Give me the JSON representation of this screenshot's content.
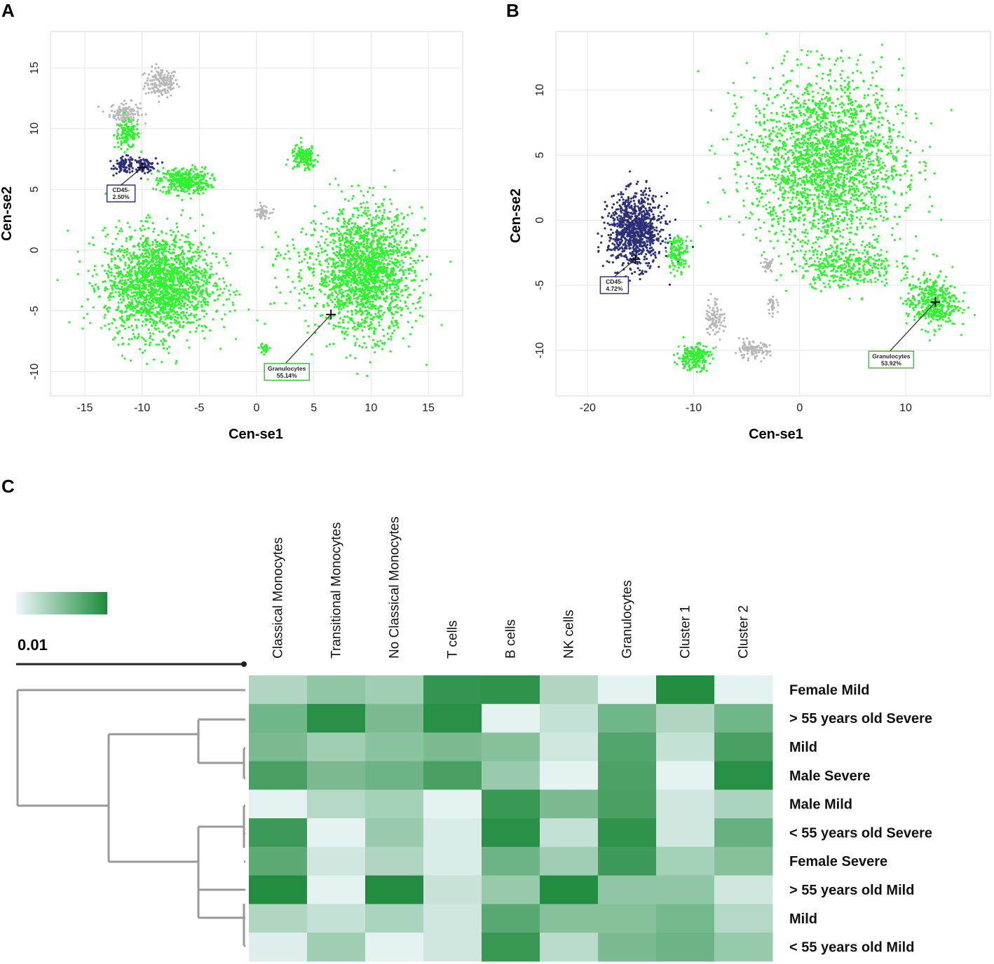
{
  "panels": {
    "A": "A",
    "B": "B",
    "C": "C"
  },
  "colors": {
    "green": "#2ef22e",
    "grey": "#b8b8b8",
    "navy": "#2b2f78",
    "heat_low": "#eef7fb",
    "heat_high": "#1e8a3c",
    "label_green": "#3fbf3f",
    "label_navy": "#333377"
  },
  "chart_data": [
    {
      "id": "A",
      "type": "scatter",
      "xlabel": "Cen-se1",
      "ylabel": "Cen-se2",
      "xlim": [
        -18,
        18
      ],
      "ylim": [
        -12,
        18
      ],
      "xticks": [
        -15,
        -10,
        -5,
        0,
        5,
        10,
        15
      ],
      "yticks": [
        -10,
        -5,
        0,
        5,
        10,
        15
      ],
      "clusters": [
        {
          "color": "grey",
          "center": [
            -8.3,
            13.8
          ],
          "spread": [
            1.3,
            1.1
          ],
          "count": 160
        },
        {
          "color": "grey",
          "center": [
            -11.5,
            11.3
          ],
          "spread": [
            1.2,
            0.8
          ],
          "count": 120
        },
        {
          "color": "green",
          "center": [
            -11.3,
            9.5
          ],
          "spread": [
            1.0,
            1.0
          ],
          "count": 130
        },
        {
          "color": "navy",
          "center": [
            -11.5,
            7.0
          ],
          "spread": [
            0.8,
            0.6
          ],
          "count": 90
        },
        {
          "color": "navy",
          "center": [
            -9.8,
            7.0
          ],
          "spread": [
            0.9,
            0.5
          ],
          "count": 80
        },
        {
          "color": "green",
          "center": [
            -6.3,
            5.7
          ],
          "spread": [
            2.0,
            1.0
          ],
          "count": 360
        },
        {
          "color": "green",
          "center": [
            -8.5,
            -2.8
          ],
          "spread": [
            4.3,
            3.8
          ],
          "count": 1900
        },
        {
          "color": "green",
          "center": [
            4.1,
            7.6
          ],
          "spread": [
            1.0,
            0.9
          ],
          "count": 150
        },
        {
          "color": "grey",
          "center": [
            0.5,
            3.2
          ],
          "spread": [
            0.6,
            0.5
          ],
          "count": 50
        },
        {
          "color": "green",
          "center": [
            9.5,
            -1.8
          ],
          "spread": [
            3.8,
            4.6
          ],
          "count": 1800
        },
        {
          "color": "green",
          "center": [
            0.7,
            -8.1
          ],
          "spread": [
            0.4,
            0.4
          ],
          "count": 30
        },
        {
          "color": "green",
          "center": [
            3.0,
            -2.0
          ],
          "spread": [
            2.5,
            4.0
          ],
          "count": 60
        }
      ],
      "gates": [
        {
          "label": "CD45-",
          "value": "2.50%",
          "point": [
            -10,
            6.8
          ],
          "color": "navy"
        },
        {
          "label": "Granulocytes",
          "value": "55.14%",
          "point": [
            6.5,
            -5.3
          ],
          "color": "green"
        }
      ]
    },
    {
      "id": "B",
      "type": "scatter",
      "xlabel": "Cen-se1",
      "ylabel": "Cen-se2",
      "xlim": [
        -23,
        18
      ],
      "ylim": [
        -13.5,
        14.5
      ],
      "xticks": [
        -20,
        -10,
        0,
        10
      ],
      "yticks": [
        -10,
        -5,
        0,
        5,
        10
      ],
      "clusters": [
        {
          "color": "green",
          "center": [
            2.5,
            4.5
          ],
          "spread": [
            6.5,
            6.0
          ],
          "count": 2300
        },
        {
          "color": "green",
          "center": [
            12.5,
            -6.3
          ],
          "spread": [
            2.2,
            1.8
          ],
          "count": 400
        },
        {
          "color": "green",
          "center": [
            4.5,
            -3.5
          ],
          "spread": [
            4.0,
            1.5
          ],
          "count": 350
        },
        {
          "color": "navy",
          "center": [
            -15.5,
            -0.8
          ],
          "spread": [
            2.3,
            2.5
          ],
          "count": 950
        },
        {
          "color": "green",
          "center": [
            -11.5,
            -2.5
          ],
          "spread": [
            0.9,
            1.2
          ],
          "count": 130
        },
        {
          "color": "grey",
          "center": [
            -8.0,
            -7.5
          ],
          "spread": [
            0.8,
            1.4
          ],
          "count": 90
        },
        {
          "color": "green",
          "center": [
            -10.0,
            -10.5
          ],
          "spread": [
            1.4,
            0.9
          ],
          "count": 200
        },
        {
          "color": "grey",
          "center": [
            -4.5,
            -10.0
          ],
          "spread": [
            1.5,
            0.6
          ],
          "count": 110
        },
        {
          "color": "grey",
          "center": [
            -2.5,
            -6.5
          ],
          "spread": [
            0.4,
            0.5
          ],
          "count": 30
        },
        {
          "color": "grey",
          "center": [
            -3.0,
            -3.5
          ],
          "spread": [
            0.5,
            0.5
          ],
          "count": 30
        }
      ],
      "gates": [
        {
          "label": "CD45-",
          "value": "4.72%",
          "point": [
            -15.5,
            -3.0
          ],
          "color": "navy"
        },
        {
          "label": "Granulocytes",
          "value": "53.92%",
          "point": [
            12.8,
            -6.3
          ],
          "color": "green"
        }
      ]
    },
    {
      "id": "C",
      "type": "heatmap",
      "columns": [
        "Classical Monocytes",
        "Transitional Monocytes",
        "No Classical Monocytes",
        "T cells",
        "B cells",
        "NK cells",
        "Granulocytes",
        "Cluster 1",
        "Cluster 2"
      ],
      "rows": [
        "Female Mild",
        "> 55 years old Severe",
        "Mild",
        "Male Severe",
        "Male Mild",
        "< 55 years old Severe",
        "Female Severe",
        "> 55 years old Mild",
        "Mild",
        "< 55 years old Mild"
      ],
      "values": [
        [
          0.3,
          0.45,
          0.38,
          0.9,
          0.92,
          0.3,
          0.05,
          0.98,
          0.05
        ],
        [
          0.6,
          0.95,
          0.55,
          0.95,
          0.05,
          0.2,
          0.6,
          0.3,
          0.6
        ],
        [
          0.55,
          0.38,
          0.48,
          0.55,
          0.5,
          0.15,
          0.75,
          0.2,
          0.8
        ],
        [
          0.8,
          0.55,
          0.62,
          0.8,
          0.4,
          0.05,
          0.78,
          0.05,
          0.95
        ],
        [
          0.05,
          0.28,
          0.35,
          0.05,
          0.88,
          0.55,
          0.8,
          0.15,
          0.32
        ],
        [
          0.85,
          0.05,
          0.4,
          0.1,
          0.95,
          0.2,
          0.92,
          0.15,
          0.65
        ],
        [
          0.7,
          0.15,
          0.3,
          0.1,
          0.62,
          0.38,
          0.85,
          0.35,
          0.5
        ],
        [
          0.98,
          0.05,
          0.98,
          0.18,
          0.42,
          0.98,
          0.45,
          0.45,
          0.15
        ],
        [
          0.3,
          0.2,
          0.32,
          0.15,
          0.72,
          0.5,
          0.5,
          0.58,
          0.28
        ],
        [
          0.08,
          0.38,
          0.05,
          0.15,
          0.88,
          0.25,
          0.55,
          0.62,
          0.42
        ]
      ],
      "colorbar": {
        "low": "heat_low",
        "high": "heat_high"
      },
      "scale_label": "0.01"
    }
  ]
}
